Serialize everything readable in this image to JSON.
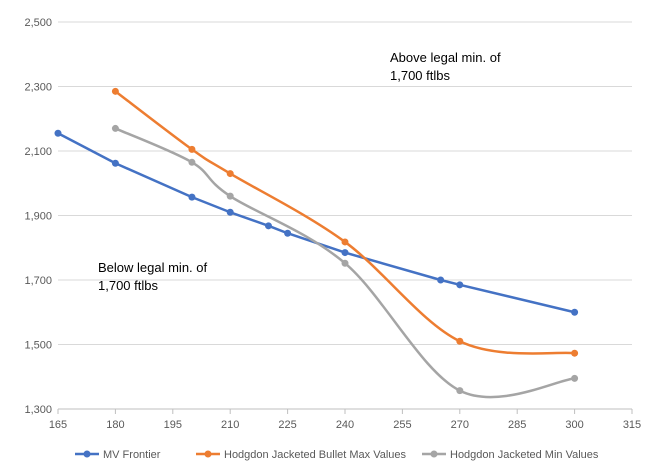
{
  "chart_data": {
    "type": "line",
    "title": "",
    "xlabel": "",
    "ylabel": "",
    "xlim": [
      165,
      315
    ],
    "ylim": [
      1300,
      2500
    ],
    "x_ticks": [
      165,
      180,
      195,
      210,
      225,
      240,
      255,
      270,
      285,
      300,
      315
    ],
    "y_ticks": [
      1300,
      1500,
      1700,
      1900,
      2100,
      2300,
      2500
    ],
    "y_tick_labels": [
      "1,300",
      "1,500",
      "1,700",
      "1,900",
      "2,100",
      "2,300",
      "2,500"
    ],
    "grid": "horizontal",
    "legend_position": "bottom",
    "series": [
      {
        "name": "MV Frontier",
        "color": "#4472C4",
        "smooth": false,
        "x": [
          165,
          180,
          200,
          210,
          220,
          225,
          240,
          265,
          270,
          300
        ],
        "y": [
          2155,
          2062,
          1957,
          1910,
          1868,
          1845,
          1785,
          1700,
          1685,
          1600
        ]
      },
      {
        "name": "Hodgdon Jacketed Bullet Max Values",
        "color": "#ED7D31",
        "smooth": true,
        "x": [
          180,
          200,
          210,
          240,
          270,
          300
        ],
        "y": [
          2285,
          2105,
          2030,
          1818,
          1510,
          1473
        ]
      },
      {
        "name": "Hodgdon Jacketed Min Values",
        "color": "#A5A5A5",
        "smooth": true,
        "x": [
          180,
          200,
          210,
          240,
          270,
          300
        ],
        "y": [
          2170,
          2065,
          1960,
          1752,
          1357,
          1395
        ]
      }
    ],
    "annotations": [
      {
        "lines": [
          "Above legal min. of",
          "1,700  ftlbs"
        ]
      },
      {
        "lines": [
          "Below legal min. of",
          "1,700  ftlbs"
        ]
      }
    ]
  }
}
